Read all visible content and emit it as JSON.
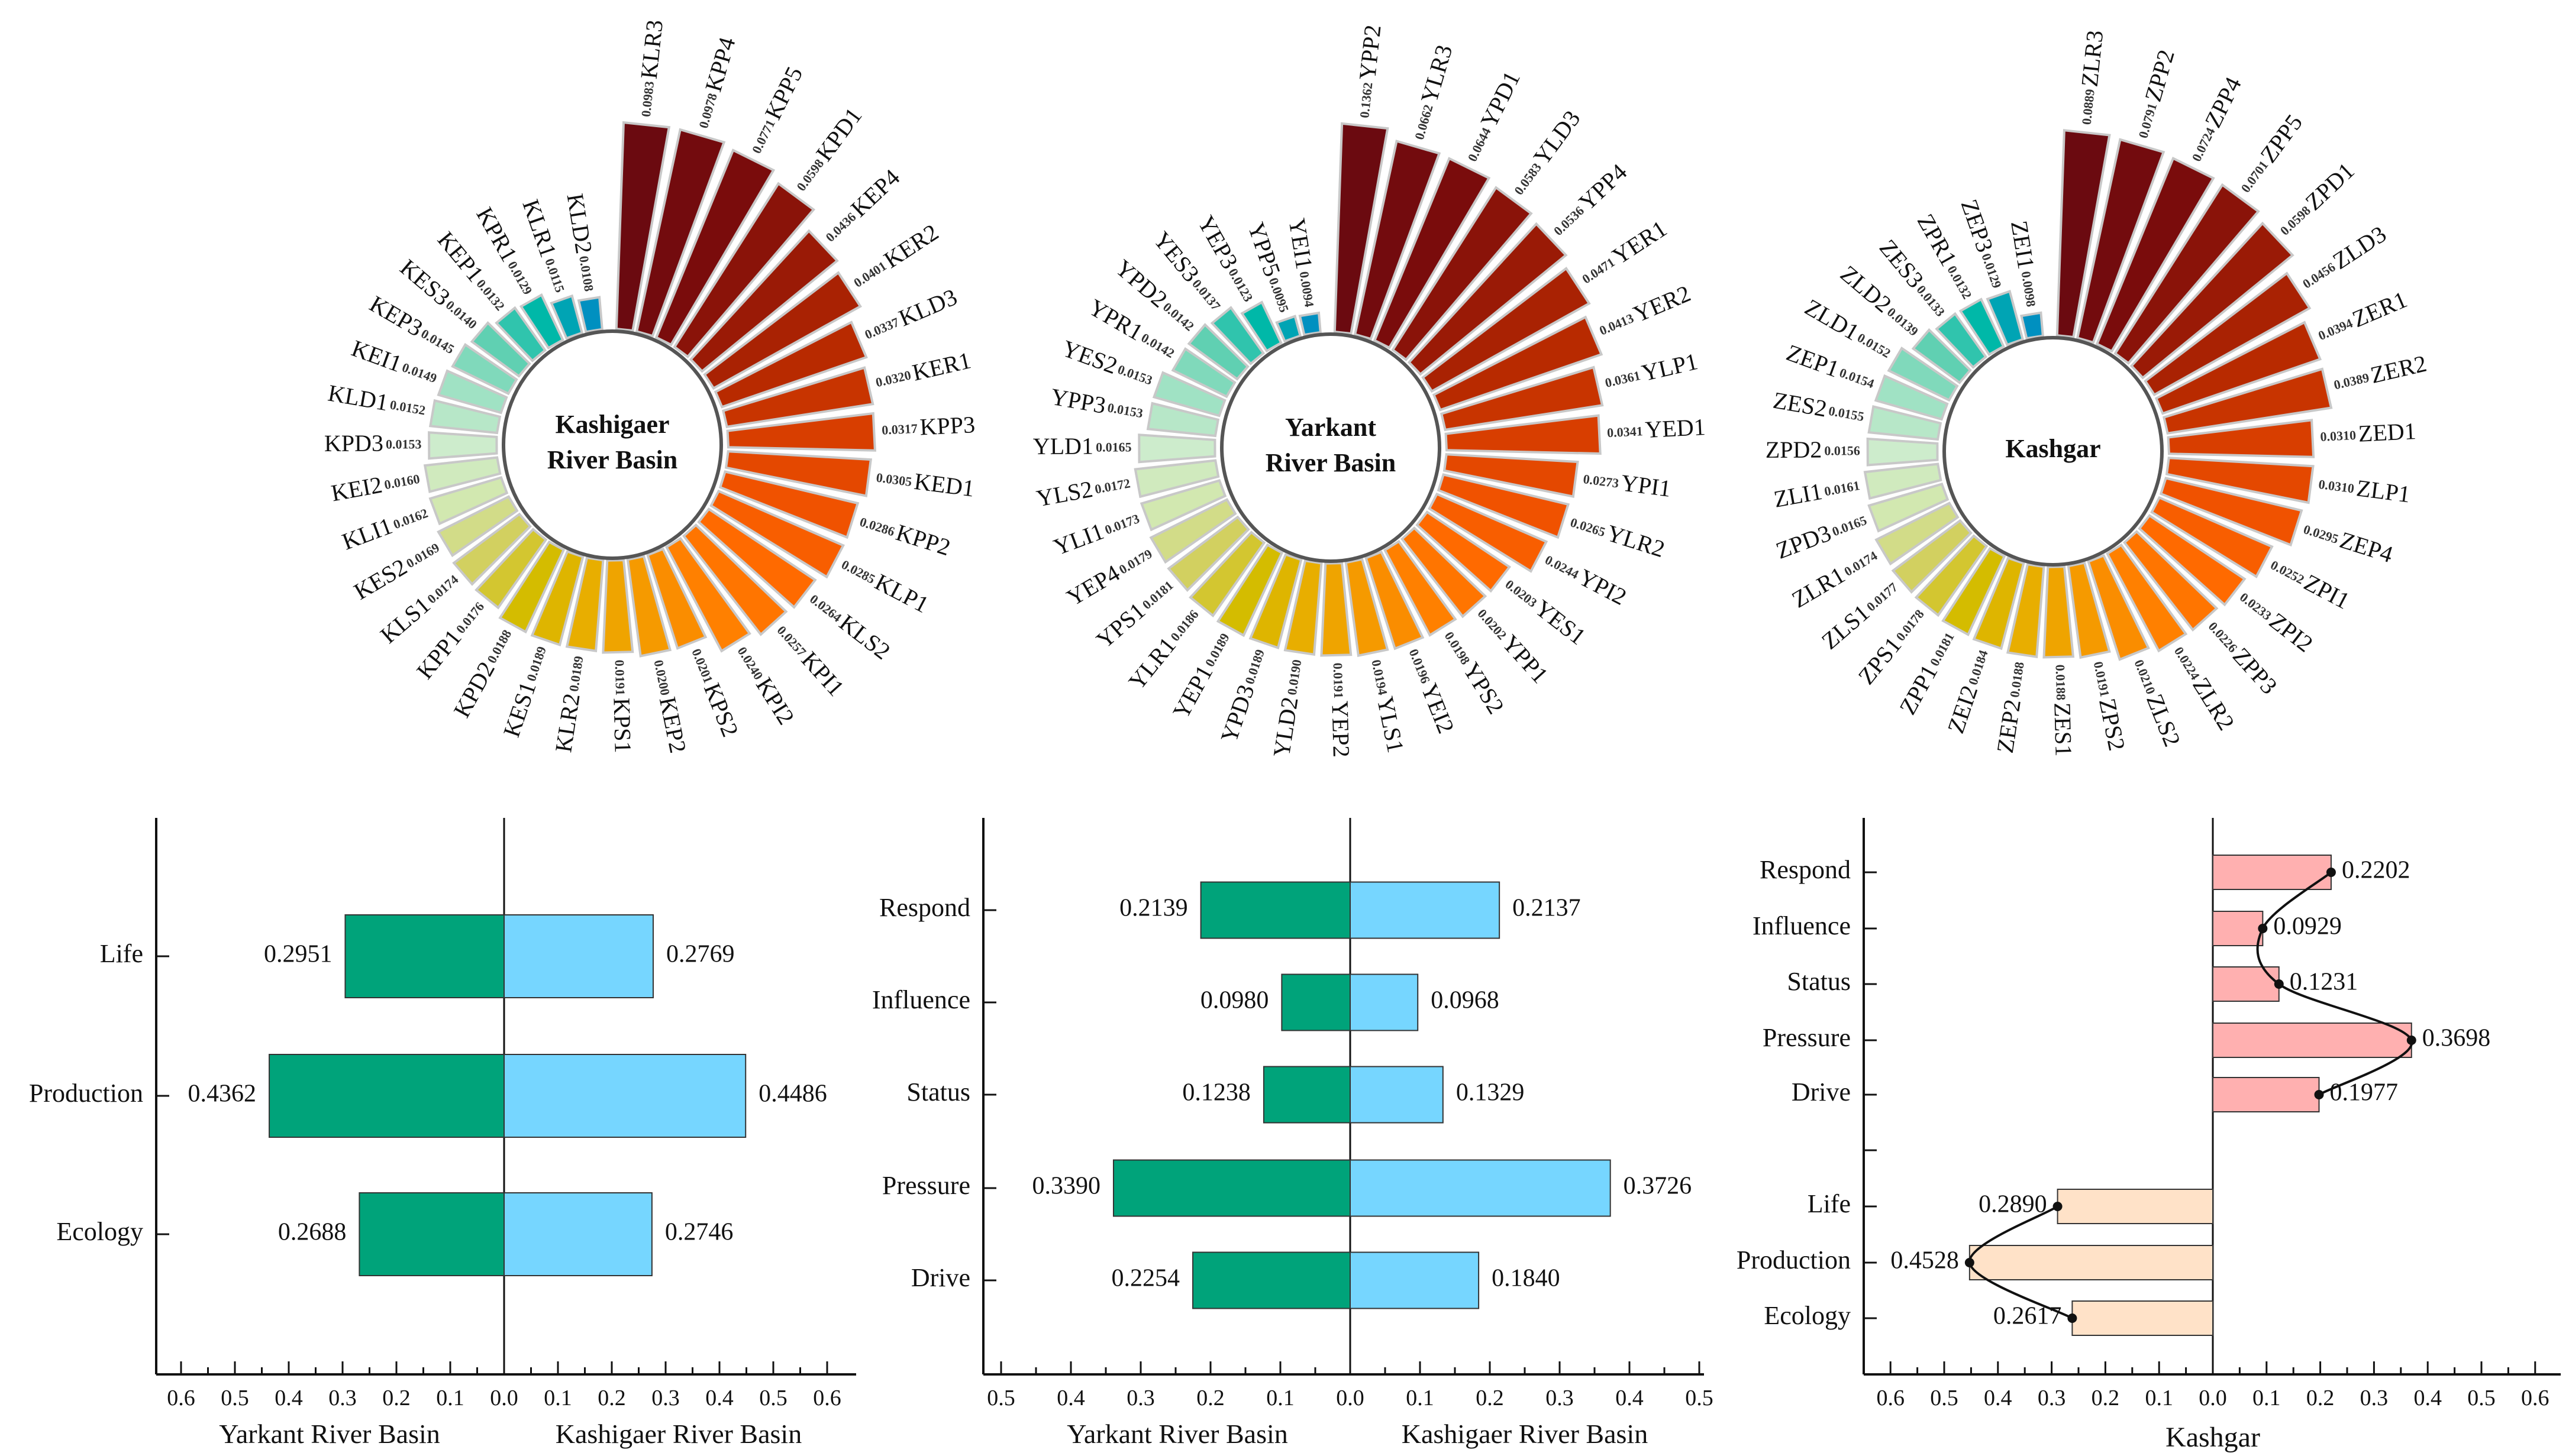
{
  "chart_data": [
    {
      "type": "bar",
      "subtype": "radial",
      "title": "Kashigaer River Basin",
      "title_lines": [
        "Kashigaer",
        "River Basin"
      ],
      "items": [
        {
          "name": "KLR3",
          "value": 0.0983
        },
        {
          "name": "KPP4",
          "value": 0.0978
        },
        {
          "name": "KPP5",
          "value": 0.0771
        },
        {
          "name": "KPD1",
          "value": 0.0598
        },
        {
          "name": "KEP4",
          "value": 0.0436
        },
        {
          "name": "KER2",
          "value": 0.0401
        },
        {
          "name": "KLD3",
          "value": 0.0337
        },
        {
          "name": "KER1",
          "value": 0.032
        },
        {
          "name": "KPP3",
          "value": 0.0317
        },
        {
          "name": "KED1",
          "value": 0.0305
        },
        {
          "name": "KPP2",
          "value": 0.0286
        },
        {
          "name": "KLP1",
          "value": 0.0285
        },
        {
          "name": "KLS2",
          "value": 0.0264
        },
        {
          "name": "KPI1",
          "value": 0.0257
        },
        {
          "name": "KPI2",
          "value": 0.024
        },
        {
          "name": "KPS2",
          "value": 0.0201
        },
        {
          "name": "KEP2",
          "value": 0.02
        },
        {
          "name": "KPS1",
          "value": 0.0191
        },
        {
          "name": "KLR2",
          "value": 0.0189
        },
        {
          "name": "KES1",
          "value": 0.0189
        },
        {
          "name": "KPD2",
          "value": 0.0188
        },
        {
          "name": "KPP1",
          "value": 0.0176
        },
        {
          "name": "KLS1",
          "value": 0.0174
        },
        {
          "name": "KES2",
          "value": 0.0169
        },
        {
          "name": "KLI1",
          "value": 0.0162
        },
        {
          "name": "KEI2",
          "value": 0.016
        },
        {
          "name": "KPD3",
          "value": 0.0153
        },
        {
          "name": "KLD1",
          "value": 0.0152
        },
        {
          "name": "KEI1",
          "value": 0.0149
        },
        {
          "name": "KEP3",
          "value": 0.0145
        },
        {
          "name": "KES3",
          "value": 0.014
        },
        {
          "name": "KEP1",
          "value": 0.0132
        },
        {
          "name": "KPR1",
          "value": 0.0129
        },
        {
          "name": "KLR1",
          "value": 0.0115
        },
        {
          "name": "KLD2",
          "value": 0.0108
        }
      ]
    },
    {
      "type": "bar",
      "subtype": "radial",
      "title": "Yarkant River Basin",
      "title_lines": [
        "Yarkant",
        "River Basin"
      ],
      "items": [
        {
          "name": "YPP2",
          "value": 0.1362
        },
        {
          "name": "YLR3",
          "value": 0.0662
        },
        {
          "name": "YPD1",
          "value": 0.0644
        },
        {
          "name": "YLD3",
          "value": 0.0583
        },
        {
          "name": "YPP4",
          "value": 0.0536
        },
        {
          "name": "YER1",
          "value": 0.0471
        },
        {
          "name": "YER2",
          "value": 0.0413
        },
        {
          "name": "YLP1",
          "value": 0.0361
        },
        {
          "name": "YED1",
          "value": 0.0341
        },
        {
          "name": "YPI1",
          "value": 0.0273
        },
        {
          "name": "YLR2",
          "value": 0.0265
        },
        {
          "name": "YPI2",
          "value": 0.0244
        },
        {
          "name": "YES1",
          "value": 0.0203
        },
        {
          "name": "YPP1",
          "value": 0.0202
        },
        {
          "name": "YPS2",
          "value": 0.0198
        },
        {
          "name": "YEI2",
          "value": 0.0196
        },
        {
          "name": "YLS1",
          "value": 0.0194
        },
        {
          "name": "YEP2",
          "value": 0.0191
        },
        {
          "name": "YLD2",
          "value": 0.019
        },
        {
          "name": "YPD3",
          "value": 0.0189
        },
        {
          "name": "YEP1",
          "value": 0.0189
        },
        {
          "name": "YLR1",
          "value": 0.0186
        },
        {
          "name": "YPS1",
          "value": 0.0181
        },
        {
          "name": "YEP4",
          "value": 0.0179
        },
        {
          "name": "YLI1",
          "value": 0.0173
        },
        {
          "name": "YLS2",
          "value": 0.0172
        },
        {
          "name": "YLD1",
          "value": 0.0165
        },
        {
          "name": "YPP3",
          "value": 0.0153
        },
        {
          "name": "YES2",
          "value": 0.0153
        },
        {
          "name": "YPR1",
          "value": 0.0142
        },
        {
          "name": "YPD2",
          "value": 0.0142
        },
        {
          "name": "YES3",
          "value": 0.0137
        },
        {
          "name": "YEP3",
          "value": 0.0123
        },
        {
          "name": "YPP5",
          "value": 0.0095
        },
        {
          "name": "YEI1",
          "value": 0.0094
        }
      ]
    },
    {
      "type": "bar",
      "subtype": "radial",
      "title": "Kashgar",
      "title_lines": [
        "Kashgar"
      ],
      "items": [
        {
          "name": "ZLR3",
          "value": 0.0889
        },
        {
          "name": "ZPP2",
          "value": 0.0791
        },
        {
          "name": "ZPP4",
          "value": 0.0724
        },
        {
          "name": "ZPP5",
          "value": 0.0701
        },
        {
          "name": "ZPD1",
          "value": 0.0598
        },
        {
          "name": "ZLD3",
          "value": 0.0456
        },
        {
          "name": "ZER1",
          "value": 0.0394
        },
        {
          "name": "ZER2",
          "value": 0.0389
        },
        {
          "name": "ZED1",
          "value": 0.031
        },
        {
          "name": "ZLP1",
          "value": 0.031
        },
        {
          "name": "ZEP4",
          "value": 0.0295
        },
        {
          "name": "ZPI1",
          "value": 0.0252
        },
        {
          "name": "ZPI2",
          "value": 0.0233
        },
        {
          "name": "ZPP3",
          "value": 0.0226
        },
        {
          "name": "ZLR2",
          "value": 0.0224
        },
        {
          "name": "ZLS2",
          "value": 0.021
        },
        {
          "name": "ZPS2",
          "value": 0.0191
        },
        {
          "name": "ZES1",
          "value": 0.0188
        },
        {
          "name": "ZEP2",
          "value": 0.0188
        },
        {
          "name": "ZEI2",
          "value": 0.0184
        },
        {
          "name": "ZPP1",
          "value": 0.0181
        },
        {
          "name": "ZPS1",
          "value": 0.0178
        },
        {
          "name": "ZLS1",
          "value": 0.0177
        },
        {
          "name": "ZLR1",
          "value": 0.0174
        },
        {
          "name": "ZPD3",
          "value": 0.0165
        },
        {
          "name": "ZLI1",
          "value": 0.0161
        },
        {
          "name": "ZPD2",
          "value": 0.0156
        },
        {
          "name": "ZES2",
          "value": 0.0155
        },
        {
          "name": "ZEP1",
          "value": 0.0154
        },
        {
          "name": "ZLD1",
          "value": 0.0152
        },
        {
          "name": "ZLD2",
          "value": 0.0139
        },
        {
          "name": "ZES3",
          "value": 0.0133
        },
        {
          "name": "ZPR1",
          "value": 0.0132
        },
        {
          "name": "ZEP3",
          "value": 0.0129
        },
        {
          "name": "ZEI1",
          "value": 0.0098
        }
      ]
    },
    {
      "type": "bar",
      "subtype": "butterfly",
      "categories": [
        "Life",
        "Production",
        "Ecology"
      ],
      "series": [
        {
          "name": "Yarkant River Basin",
          "values": [
            0.2951,
            0.4362,
            0.2688
          ],
          "labels": [
            "0.2951",
            "0.4362",
            "0.2688"
          ],
          "side": "left"
        },
        {
          "name": "Kashigaer River Basin",
          "values": [
            0.2769,
            0.4486,
            0.2746
          ],
          "labels": [
            "0.2769",
            "0.4486",
            "0.2746"
          ],
          "side": "right"
        }
      ],
      "xlim": [
        -0.6,
        0.6
      ],
      "ticks": [
        "0.6",
        "0.5",
        "0.4",
        "0.3",
        "0.2",
        "0.1",
        "0.0",
        "0.1",
        "0.2",
        "0.3",
        "0.4",
        "0.5",
        "0.6"
      ]
    },
    {
      "type": "bar",
      "subtype": "butterfly",
      "categories": [
        "Respond",
        "Influence",
        "Status",
        "Pressure",
        "Drive"
      ],
      "series": [
        {
          "name": "Yarkant River Basin",
          "values": [
            0.2139,
            0.098,
            0.1238,
            0.339,
            0.2254
          ],
          "labels": [
            "0.2139",
            "0.0980",
            "0.1238",
            "0.3390",
            "0.2254"
          ],
          "side": "left"
        },
        {
          "name": "Kashigaer River Basin",
          "values": [
            0.2137,
            0.0968,
            0.1329,
            0.3726,
            0.184
          ],
          "labels": [
            "0.2137",
            "0.0968",
            "0.1329",
            "0.3726",
            "0.1840"
          ],
          "side": "right"
        }
      ],
      "xlim": [
        -0.5,
        0.5
      ],
      "ticks": [
        "0.5",
        "0.4",
        "0.3",
        "0.2",
        "0.1",
        "0.0",
        "0.1",
        "0.2",
        "0.3",
        "0.4",
        "0.5"
      ]
    },
    {
      "type": "bar",
      "subtype": "diverging-with-curve",
      "xlabel": "Kashgar",
      "upper": {
        "categories": [
          "Respond",
          "Influence",
          "Status",
          "Pressure",
          "Drive"
        ],
        "values": [
          0.2202,
          0.0929,
          0.1231,
          0.3698,
          0.1977
        ],
        "labels": [
          "0.2202",
          "0.0929",
          "0.1231",
          "0.3698",
          "0.1977"
        ],
        "side": "right"
      },
      "lower": {
        "categories": [
          "Life",
          "Production",
          "Ecology"
        ],
        "values": [
          0.289,
          0.4528,
          0.2617
        ],
        "labels": [
          "0.2890",
          "0.4528",
          "0.2617"
        ],
        "side": "left"
      },
      "xlim": [
        -0.6,
        0.6
      ],
      "ticks": [
        "0.6",
        "0.5",
        "0.4",
        "0.3",
        "0.2",
        "0.1",
        "0.0",
        "0.1",
        "0.2",
        "0.3",
        "0.4",
        "0.5",
        "0.6"
      ]
    }
  ],
  "colors": {
    "radial_ramp": [
      "#6b0a10",
      "#7a0c0c",
      "#9a1a06",
      "#b82a00",
      "#d83e00",
      "#f05200",
      "#ff6a00",
      "#ff8000",
      "#f59a00",
      "#e8ae00",
      "#d4bc00",
      "#d2d060",
      "#d2e8b0",
      "#cdeccc",
      "#a0e2c4",
      "#60d0b2",
      "#00b8a8",
      "#0090c0"
    ],
    "left_bar": "#00a37a",
    "right_bar": "#76d6ff",
    "upper_bar": "#ffb0b0",
    "lower_bar": "#ffe2c8",
    "bar_stroke": "#333333",
    "radial_stroke": "#c8c8c8"
  },
  "labels": {
    "chart_a_xlabel_left": "Yarkant River Basin",
    "chart_a_xlabel_right": "Kashigaer River Basin",
    "chart_b_xlabel_left": "Yarkant River Basin",
    "chart_b_xlabel_right": "Kashigaer River Basin"
  }
}
